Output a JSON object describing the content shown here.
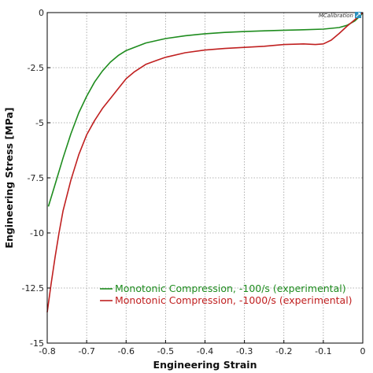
{
  "logo": {
    "text": "MCalibration",
    "icon": "mcalibration-logo-icon"
  },
  "colors": {
    "grid": "#9a9a9a",
    "axis": "#000000",
    "logo_box": "#2a8fbd"
  },
  "chart_data": {
    "type": "line",
    "xlabel": "Engineering Strain",
    "ylabel": "Engineering Stress [MPa]",
    "xlim": [
      -0.8,
      0
    ],
    "ylim": [
      -15,
      0
    ],
    "grid": true,
    "legend_position": "bottom-right",
    "x_ticks": [
      -0.8,
      -0.7,
      -0.6,
      -0.5,
      -0.4,
      -0.3,
      -0.2,
      -0.1,
      0
    ],
    "x_tick_labels": [
      "-0.8",
      "-0.7",
      "-0.6",
      "-0.5",
      "-0.4",
      "-0.3",
      "-0.2",
      "-0.1",
      "0"
    ],
    "y_ticks": [
      0,
      -2.5,
      -5,
      -7.5,
      -10,
      -12.5,
      -15
    ],
    "y_tick_labels": [
      "0",
      "-2.5",
      "-5",
      "-7.5",
      "-10",
      "-12.5",
      "-15"
    ],
    "series": [
      {
        "name": "Monotonic Compression, -100/s (experimental)",
        "color": "#1e8c1e",
        "points": [
          [
            -0.797,
            -8.8
          ],
          [
            -0.78,
            -7.8
          ],
          [
            -0.76,
            -6.6
          ],
          [
            -0.74,
            -5.5
          ],
          [
            -0.72,
            -4.55
          ],
          [
            -0.7,
            -3.8
          ],
          [
            -0.68,
            -3.15
          ],
          [
            -0.66,
            -2.65
          ],
          [
            -0.64,
            -2.25
          ],
          [
            -0.62,
            -1.95
          ],
          [
            -0.6,
            -1.72
          ],
          [
            -0.55,
            -1.38
          ],
          [
            -0.5,
            -1.18
          ],
          [
            -0.45,
            -1.05
          ],
          [
            -0.4,
            -0.96
          ],
          [
            -0.35,
            -0.9
          ],
          [
            -0.3,
            -0.86
          ],
          [
            -0.25,
            -0.83
          ],
          [
            -0.2,
            -0.8
          ],
          [
            -0.15,
            -0.78
          ],
          [
            -0.1,
            -0.75
          ],
          [
            -0.06,
            -0.68
          ],
          [
            -0.04,
            -0.58
          ],
          [
            -0.02,
            -0.38
          ],
          [
            -0.005,
            -0.12
          ],
          [
            0,
            0
          ]
        ]
      },
      {
        "name": "Monotonic Compression, -1000/s (experimental)",
        "color": "#c02020",
        "points": [
          [
            -0.8,
            -13.6
          ],
          [
            -0.79,
            -12.3
          ],
          [
            -0.78,
            -11.1
          ],
          [
            -0.77,
            -10.0
          ],
          [
            -0.76,
            -9.0
          ],
          [
            -0.74,
            -7.6
          ],
          [
            -0.72,
            -6.45
          ],
          [
            -0.7,
            -5.55
          ],
          [
            -0.68,
            -4.9
          ],
          [
            -0.66,
            -4.35
          ],
          [
            -0.64,
            -3.9
          ],
          [
            -0.62,
            -3.45
          ],
          [
            -0.6,
            -3.0
          ],
          [
            -0.58,
            -2.7
          ],
          [
            -0.55,
            -2.35
          ],
          [
            -0.52,
            -2.15
          ],
          [
            -0.5,
            -2.03
          ],
          [
            -0.45,
            -1.82
          ],
          [
            -0.4,
            -1.7
          ],
          [
            -0.35,
            -1.63
          ],
          [
            -0.3,
            -1.58
          ],
          [
            -0.25,
            -1.53
          ],
          [
            -0.2,
            -1.45
          ],
          [
            -0.15,
            -1.42
          ],
          [
            -0.12,
            -1.45
          ],
          [
            -0.1,
            -1.42
          ],
          [
            -0.08,
            -1.25
          ],
          [
            -0.06,
            -0.95
          ],
          [
            -0.04,
            -0.62
          ],
          [
            -0.02,
            -0.32
          ],
          [
            -0.005,
            -0.08
          ],
          [
            0,
            0
          ]
        ]
      }
    ]
  }
}
